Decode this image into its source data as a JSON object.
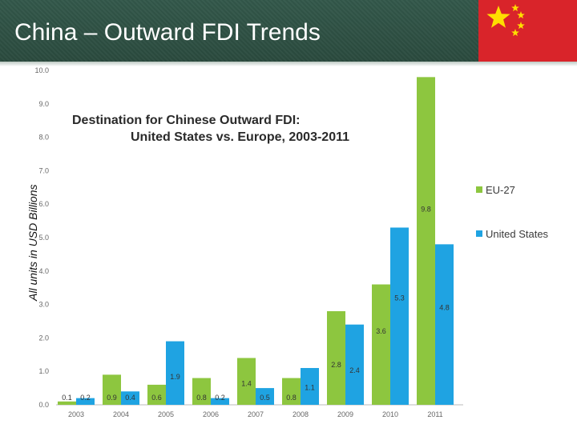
{
  "slide": {
    "title": "China – Outward FDI Trends",
    "unit_label": "All units in USD Billions"
  },
  "colors": {
    "header": "#2f5446",
    "eu": "#8dc63f",
    "us": "#1fa3e2",
    "flag_red": "#d9242a",
    "flag_star": "#ffde00"
  },
  "icons": {
    "flag": "china-flag-icon"
  },
  "chart_data": {
    "type": "bar",
    "title_line1": "Destination for Chinese Outward FDI:",
    "title_line2": "United States vs. Europe, 2003-2011",
    "categories": [
      "2003",
      "2004",
      "2005",
      "2006",
      "2007",
      "2008",
      "2009",
      "2010",
      "2011"
    ],
    "series": [
      {
        "name": "EU-27",
        "values": [
          0.1,
          0.9,
          0.6,
          0.8,
          1.4,
          0.8,
          2.8,
          3.6,
          9.8
        ],
        "labels": [
          "0.1",
          "0.9",
          "0.6",
          "0.8",
          "1.4",
          "0.8",
          "2.8",
          "3.6",
          "9.8"
        ]
      },
      {
        "name": "United States",
        "values": [
          0.2,
          0.4,
          1.9,
          0.2,
          0.5,
          1.1,
          2.4,
          5.3,
          4.8
        ],
        "labels": [
          "0.2",
          "0.4",
          "1.9",
          "0.2",
          "0.5",
          "1.1",
          "2.4",
          "5.3",
          "4.8"
        ]
      }
    ],
    "ylim": [
      0,
      10
    ],
    "yticks": [
      "0.0",
      "1.0",
      "2.0",
      "3.0",
      "4.0",
      "5.0",
      "6.0",
      "7.0",
      "8.0",
      "9.0",
      "10.0"
    ],
    "legend_position": "right",
    "grid": false
  }
}
